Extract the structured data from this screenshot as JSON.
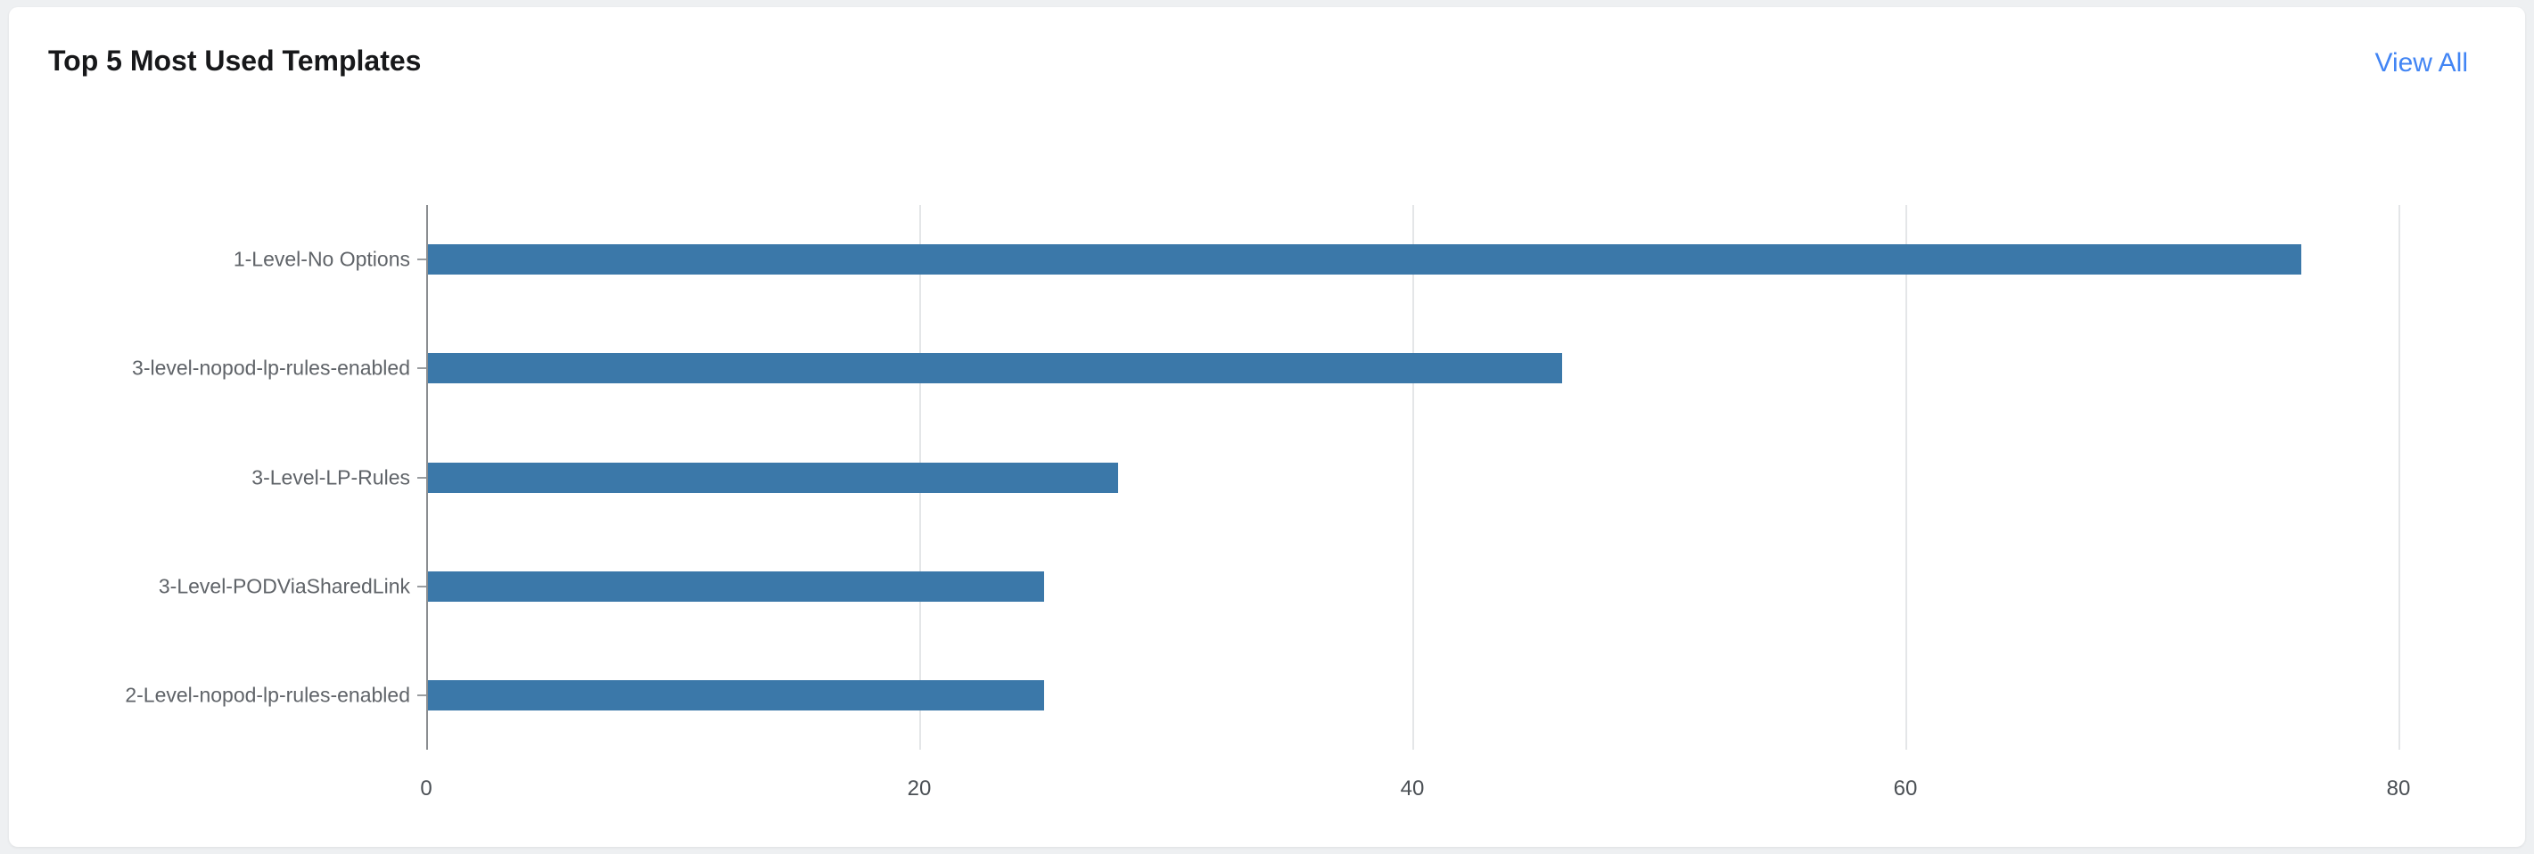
{
  "header": {
    "title": "Top 5 Most Used Templates",
    "view_all_label": "View All"
  },
  "chart_data": {
    "type": "bar",
    "orientation": "horizontal",
    "title": "Top 5 Most Used Templates",
    "categories": [
      "1-Level-No Options",
      "3-level-nopod-lp-rules-enabled",
      "3-Level-LP-Rules",
      "3-Level-PODViaSharedLink",
      "2-Level-nopod-lp-rules-enabled"
    ],
    "values": [
      76,
      46,
      28,
      25,
      25
    ],
    "xlabel": "",
    "ylabel": "",
    "xlim": [
      0,
      80
    ],
    "x_ticks": [
      0,
      20,
      40,
      60,
      80
    ],
    "grid": true,
    "legend": false,
    "bar_color": "#3b78a9"
  }
}
